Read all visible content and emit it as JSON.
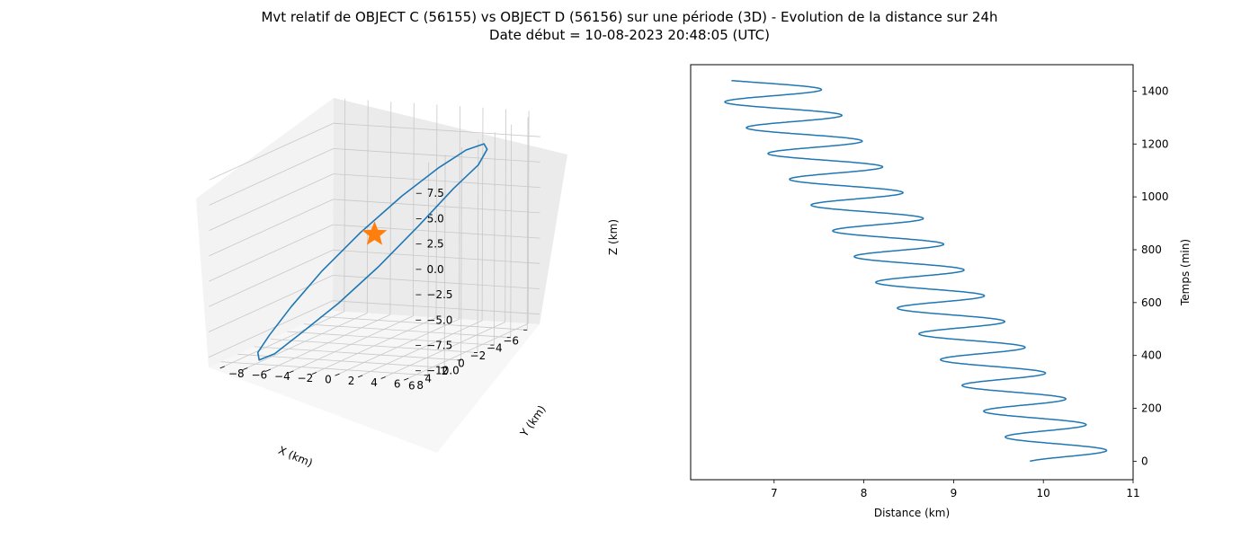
{
  "title_line_1": "Mvt relatif de OBJECT C (56155) vs OBJECT D (56156) sur une période (3D) - Evolution de la distance sur 24h",
  "title_line_2": "Date début = 10-08-2023 20:48:05 (UTC)",
  "chart_data": [
    {
      "type": "line3d",
      "xlabel": "X (km)",
      "ylabel": "Y (km)",
      "zlabel": "Z (km)",
      "x_ticks": [
        "−6",
        "−4",
        "−2",
        "0",
        "2",
        "4",
        "6"
      ],
      "y_ticks": [
        "−8",
        "−6",
        "−4",
        "−2",
        "0",
        "2",
        "4",
        "6",
        "8"
      ],
      "z_ticks": [
        "−10.0",
        "−7.5",
        "−5.0",
        "−2.5",
        "0.0",
        "2.5",
        "5.0",
        "7.5"
      ],
      "xlim": [
        -7.5,
        7.5
      ],
      "ylim": [
        -9,
        9
      ],
      "zlim": [
        -11,
        10
      ],
      "grid": true,
      "series": [
        {
          "color": "#1f77b4",
          "closed": true,
          "points": [
            [
              0.0,
              9.0,
              7.5
            ],
            [
              2.3,
              8.5,
              6.0
            ],
            [
              4.4,
              7.0,
              3.0
            ],
            [
              6.1,
              4.8,
              -0.5
            ],
            [
              7.1,
              2.0,
              -4.0
            ],
            [
              7.3,
              -1.0,
              -7.0
            ],
            [
              6.6,
              -3.9,
              -9.6
            ],
            [
              5.0,
              -6.4,
              -11.0
            ],
            [
              2.8,
              -8.1,
              -11.2
            ],
            [
              0.3,
              -8.9,
              -10.5
            ],
            [
              -2.2,
              -8.8,
              -8.6
            ],
            [
              -4.4,
              -7.7,
              -5.8
            ],
            [
              -6.1,
              -5.6,
              -2.5
            ],
            [
              -7.2,
              -2.8,
              0.9
            ],
            [
              -7.4,
              0.2,
              3.8
            ],
            [
              -6.6,
              3.2,
              6.1
            ],
            [
              -5.0,
              5.9,
              7.5
            ],
            [
              -2.6,
              7.9,
              8.0
            ]
          ]
        }
      ],
      "marker": {
        "type": "star",
        "color": "#ff7f0e",
        "position": [
          0,
          0,
          0
        ]
      }
    },
    {
      "type": "line",
      "xlabel": "Distance (km)",
      "ylabel": "Temps (min)",
      "xlim": [
        6.07,
        11.0
      ],
      "ylim": [
        -70,
        1500
      ],
      "x_ticks": [
        7,
        8,
        9,
        10,
        11
      ],
      "y_ticks": [
        0,
        200,
        400,
        600,
        800,
        1000,
        1200,
        1400
      ],
      "grid": false,
      "series": [
        {
          "color": "#1f77b4",
          "params": {
            "t_start": 0,
            "t_end": 1440,
            "period": 97.5,
            "start_distance": 9.85,
            "min_start": 9.8,
            "min_end": 6.25,
            "max_start": 10.8,
            "max_end": 7.45
          }
        }
      ]
    }
  ]
}
